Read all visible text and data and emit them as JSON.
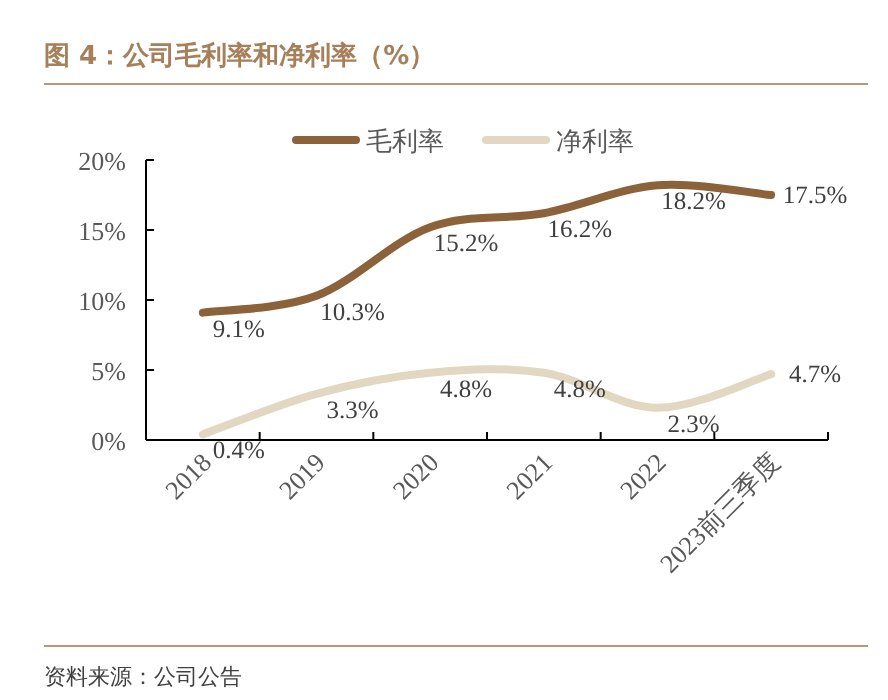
{
  "chart_data": {
    "type": "line",
    "title": "图 4：公司毛利率和净利率（%）",
    "categories": [
      "2018",
      "2019",
      "2020",
      "2021",
      "2022",
      "2023前三季度"
    ],
    "series": [
      {
        "name": "毛利率",
        "color": "#8b6239",
        "values": [
          9.1,
          10.3,
          15.2,
          16.2,
          18.2,
          17.5
        ],
        "value_labels": [
          "9.1%",
          "10.3%",
          "15.2%",
          "16.2%",
          "18.2%",
          "17.5%"
        ]
      },
      {
        "name": "净利率",
        "color": "#e2d8c1",
        "values": [
          0.4,
          3.3,
          4.8,
          4.8,
          2.3,
          4.7
        ],
        "value_labels": [
          "0.4%",
          "3.3%",
          "4.8%",
          "4.8%",
          "2.3%",
          "4.7%"
        ]
      }
    ],
    "ylim": [
      0,
      20
    ],
    "yticks": [
      {
        "value": 0,
        "label": "0%"
      },
      {
        "value": 5,
        "label": "5%"
      },
      {
        "value": 10,
        "label": "10%"
      },
      {
        "value": 15,
        "label": "15%"
      },
      {
        "value": 20,
        "label": "20%"
      }
    ],
    "legend": "top",
    "grid": false,
    "marker": "none",
    "line_style": "solid",
    "annotations": [
      "资料来源：公司公告"
    ]
  }
}
